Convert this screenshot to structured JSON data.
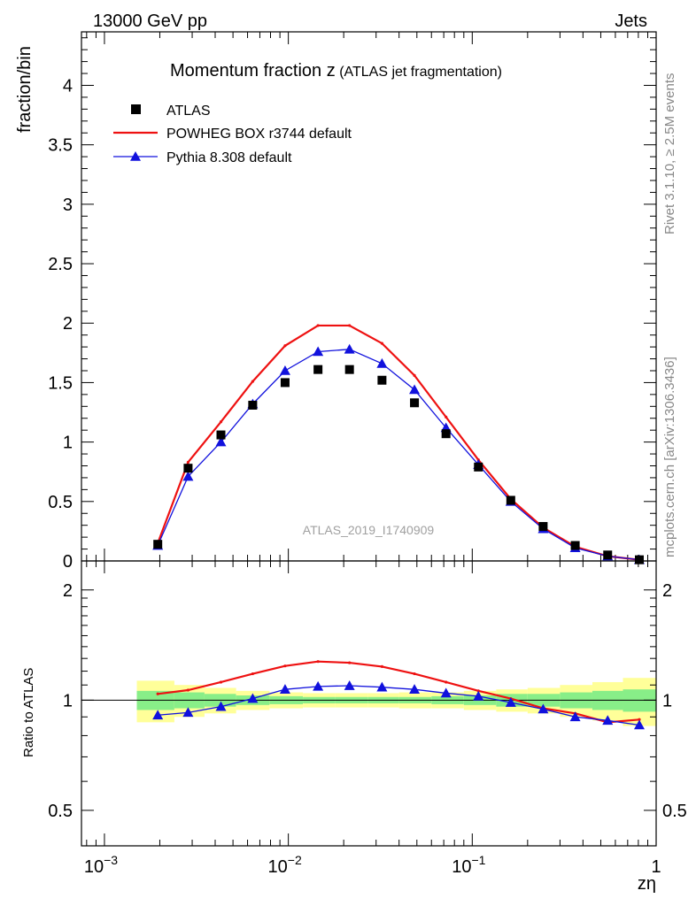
{
  "header": {
    "left": "13000 GeV pp",
    "right": "Jets"
  },
  "side_labels": {
    "top": "Rivet 3.1.10, ≥ 2.5M events",
    "bottom": "mcplots.cern.ch [arXiv:1306.3436]"
  },
  "chart_data": {
    "type": "line",
    "title": "Momentum fraction z",
    "title_suffix": "(ATLAS jet fragmentation)",
    "watermark": "ATLAS_2019_I1740909",
    "xlabel": "zη",
    "x_scale": "log",
    "xlim": [
      0.00075,
      1.0
    ],
    "x_ticks": [
      0.001,
      0.01,
      0.1,
      1
    ],
    "x_tick_labels": [
      {
        "base": "10",
        "exp": "−3"
      },
      {
        "base": "10",
        "exp": "−2"
      },
      {
        "base": "10",
        "exp": "−1"
      },
      {
        "base": "1",
        "exp": ""
      }
    ],
    "x": [
      0.00195,
      0.00285,
      0.0043,
      0.0064,
      0.0096,
      0.0145,
      0.0215,
      0.0323,
      0.0485,
      0.072,
      0.108,
      0.162,
      0.243,
      0.363,
      0.545,
      0.81
    ],
    "main_panel": {
      "ylabel": "fraction/bin",
      "ylim": [
        0,
        4.45
      ],
      "y_ticks": [
        0,
        0.5,
        1,
        1.5,
        2,
        2.5,
        3,
        3.5,
        4
      ],
      "y_tick_labels": [
        "0",
        "0.5",
        "1",
        "1.5",
        "2",
        "2.5",
        "3",
        "3.5",
        "4"
      ],
      "series": [
        {
          "name": "ATLAS",
          "kind": "data",
          "color": "#000000",
          "marker": "square",
          "values": [
            0.14,
            0.78,
            1.06,
            1.31,
            1.5,
            1.61,
            1.61,
            1.52,
            1.33,
            1.07,
            0.79,
            0.51,
            0.29,
            0.13,
            0.05,
            0.01
          ]
        },
        {
          "name": "POWHEG BOX r3744 default",
          "kind": "line",
          "color": "#ee1111",
          "marker": "none",
          "values": [
            0.15,
            0.83,
            1.17,
            1.51,
            1.81,
            1.98,
            1.98,
            1.83,
            1.56,
            1.21,
            0.85,
            0.52,
            0.28,
            0.12,
            0.04,
            0.01
          ]
        },
        {
          "name": "Pythia 8.308 default",
          "kind": "line",
          "color": "#1111dd",
          "marker": "triangle",
          "values": [
            0.13,
            0.71,
            1.0,
            1.32,
            1.6,
            1.76,
            1.78,
            1.66,
            1.44,
            1.12,
            0.81,
            0.5,
            0.27,
            0.11,
            0.04,
            0.01
          ]
        }
      ]
    },
    "ratio_panel": {
      "ylabel": "Ratio to ATLAS",
      "y_scale": "log",
      "ylim": [
        0.4,
        2.4
      ],
      "y_ticks": [
        0.5,
        1,
        2
      ],
      "y_tick_labels": [
        "0.5",
        "1",
        "2"
      ],
      "series": [
        {
          "name": "POWHEG BOX r3744 default",
          "color": "#ee1111",
          "marker": "none",
          "values": [
            1.04,
            1.065,
            1.12,
            1.18,
            1.24,
            1.275,
            1.265,
            1.235,
            1.18,
            1.12,
            1.06,
            1.01,
            0.95,
            0.92,
            0.87,
            0.885
          ]
        },
        {
          "name": "Pythia 8.308 default",
          "color": "#1111dd",
          "marker": "triangle",
          "values": [
            0.91,
            0.925,
            0.96,
            1.01,
            1.07,
            1.09,
            1.095,
            1.085,
            1.07,
            1.045,
            1.025,
            0.985,
            0.945,
            0.9,
            0.88,
            0.855
          ]
        }
      ],
      "band_edges": [
        0.0015,
        0.0024,
        0.0035,
        0.0052,
        0.0079,
        0.012,
        0.018,
        0.027,
        0.04,
        0.06,
        0.09,
        0.135,
        0.2,
        0.3,
        0.45,
        0.66,
        1.0
      ],
      "band_inner": [
        0.06,
        0.05,
        0.04,
        0.03,
        0.025,
        0.02,
        0.02,
        0.02,
        0.02,
        0.025,
        0.03,
        0.04,
        0.04,
        0.05,
        0.06,
        0.07
      ],
      "band_outer": [
        0.13,
        0.1,
        0.08,
        0.06,
        0.05,
        0.045,
        0.045,
        0.045,
        0.05,
        0.05,
        0.06,
        0.07,
        0.08,
        0.1,
        0.12,
        0.15
      ],
      "band_inner_color": "#88ee88",
      "band_outer_color": "#ffff99"
    }
  }
}
